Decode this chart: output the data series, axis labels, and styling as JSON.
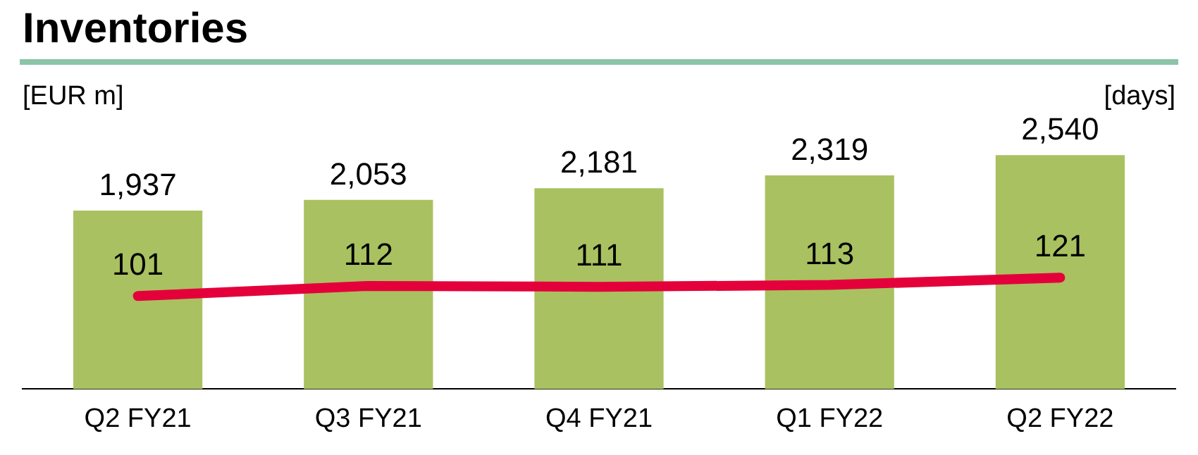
{
  "chart_data": {
    "type": "bar",
    "title": "Inventories",
    "ylabel": "[EUR m]",
    "y2label": "[days]",
    "categories": [
      "Q2 FY21",
      "Q3 FY21",
      "Q4 FY21",
      "Q1 FY22",
      "Q2 FY22"
    ],
    "series": [
      {
        "color": "#a9c160",
        "values": [
          1937,
          2053,
          2181,
          2319,
          2540
        ],
        "value_labels": [
          "1,937",
          "2,053",
          "2,181",
          "2,319",
          "2,540"
        ]
      },
      {
        "type": "line",
        "axis": "y2",
        "color": "#e4003a",
        "values": [
          101,
          112,
          111,
          113,
          121
        ],
        "value_labels": [
          "101",
          "112",
          "111",
          "113",
          "121"
        ]
      }
    ],
    "tick_labels": "x",
    "grid": false,
    "legend": false
  }
}
